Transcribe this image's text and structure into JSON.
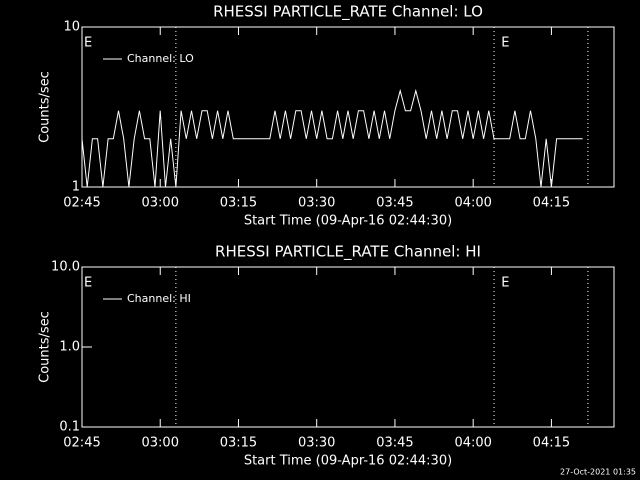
{
  "chart_data": [
    {
      "type": "line",
      "title": "RHESSI PARTICLE_RATE Channel: LO",
      "xlabel": "Start Time (09-Apr-16 02:44:30)",
      "ylabel": "Counts/sec",
      "log_y": true,
      "ylim": [
        1,
        10
      ],
      "yticks": [
        1,
        10
      ],
      "xlim": [
        "02:45",
        "04:27"
      ],
      "xticks": [
        "02:45",
        "03:00",
        "03:15",
        "03:30",
        "03:45",
        "04:00",
        "04:15"
      ],
      "vlines": [
        "03:03",
        "04:04",
        "04:22"
      ],
      "annotations": [
        {
          "text": "E",
          "x": "02:45"
        },
        {
          "text": "E",
          "x": "04:05"
        }
      ],
      "legend": "upper left",
      "x": [
        "02:45",
        "02:46",
        "02:47",
        "02:48",
        "02:49",
        "02:50",
        "02:51",
        "02:52",
        "02:53",
        "02:54",
        "02:55",
        "02:56",
        "02:57",
        "02:58",
        "02:59",
        "03:00",
        "03:01",
        "03:02",
        "03:03",
        "03:04",
        "03:05",
        "03:06",
        "03:07",
        "03:08",
        "03:09",
        "03:10",
        "03:11",
        "03:12",
        "03:13",
        "03:14",
        "03:15",
        "03:16",
        "03:17",
        "03:18",
        "03:19",
        "03:20",
        "03:21",
        "03:22",
        "03:23",
        "03:24",
        "03:25",
        "03:26",
        "03:27",
        "03:28",
        "03:29",
        "03:30",
        "03:31",
        "03:32",
        "03:33",
        "03:34",
        "03:35",
        "03:36",
        "03:37",
        "03:38",
        "03:39",
        "03:40",
        "03:41",
        "03:42",
        "03:43",
        "03:44",
        "03:45",
        "03:46",
        "03:47",
        "03:48",
        "03:49",
        "03:50",
        "03:51",
        "03:52",
        "03:53",
        "03:54",
        "03:55",
        "03:56",
        "03:57",
        "03:58",
        "03:59",
        "04:00",
        "04:01",
        "04:02",
        "04:03",
        "04:04",
        "04:05",
        "04:06",
        "04:07",
        "04:08",
        "04:09",
        "04:10",
        "04:11",
        "04:12",
        "04:13",
        "04:14",
        "04:15",
        "04:16",
        "04:17",
        "04:18",
        "04:19",
        "04:20",
        "04:21"
      ],
      "series": [
        {
          "name": "Channel: LO",
          "color": "#ffffff",
          "values": [
            2,
            1,
            2,
            2,
            1,
            2,
            2,
            3,
            2,
            1,
            2,
            3,
            2,
            2,
            1,
            3,
            1,
            2,
            1,
            3,
            2,
            3,
            2,
            3,
            3,
            2,
            3,
            2,
            3,
            2,
            2,
            2,
            2,
            2,
            2,
            2,
            2,
            3,
            2,
            3,
            2,
            3,
            3,
            2,
            3,
            2,
            3,
            2,
            2,
            3,
            2,
            3,
            2,
            3,
            3,
            2,
            3,
            2,
            3,
            2,
            3,
            4,
            3,
            3,
            4,
            3,
            2,
            3,
            2,
            3,
            2,
            3,
            3,
            2,
            3,
            2,
            3,
            2,
            3,
            2,
            2,
            2,
            2,
            3,
            2,
            2,
            3,
            2,
            1,
            2,
            1,
            2,
            2,
            2,
            2,
            2,
            2
          ]
        }
      ]
    },
    {
      "type": "line",
      "title": "RHESSI PARTICLE_RATE Channel: HI",
      "xlabel": "Start Time (09-Apr-16 02:44:30)",
      "ylabel": "Counts/sec",
      "log_y": true,
      "ylim": [
        0.1,
        10
      ],
      "yticks": [
        {
          "value": 0.1,
          "label": "0.1"
        },
        {
          "value": 1,
          "label": "1.0"
        },
        {
          "value": 10,
          "label": "10.0"
        }
      ],
      "xlim": [
        "02:45",
        "04:27"
      ],
      "xticks": [
        "02:45",
        "03:00",
        "03:15",
        "03:30",
        "03:45",
        "04:00",
        "04:15"
      ],
      "vlines": [
        "03:03",
        "04:04",
        "04:22"
      ],
      "annotations": [
        {
          "text": "E",
          "x": "02:45"
        },
        {
          "text": "E",
          "x": "04:05"
        }
      ],
      "legend": "upper left",
      "x": [],
      "series": [
        {
          "name": "Channel: HI",
          "color": "#ffffff",
          "values": []
        }
      ]
    }
  ],
  "footer": "27-Oct-2021 01:35"
}
